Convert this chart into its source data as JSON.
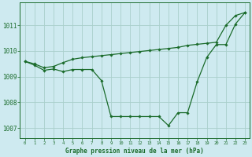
{
  "title": "Graphe pression niveau de la mer (hPa)",
  "background_color": "#ceeaf0",
  "grid_color": "#aacfcc",
  "line_color": "#1a6b2a",
  "x_labels": [
    "0",
    "1",
    "2",
    "3",
    "4",
    "5",
    "6",
    "7",
    "8",
    "9",
    "10",
    "11",
    "12",
    "13",
    "14",
    "15",
    "16",
    "17",
    "18",
    "19",
    "20",
    "21",
    "22",
    "23"
  ],
  "line1_x": [
    0,
    1,
    2,
    3,
    4,
    5,
    6,
    7,
    8,
    9,
    10,
    11,
    12,
    13,
    14,
    15,
    16,
    17,
    18,
    19,
    20,
    21,
    22,
    23
  ],
  "line1_y": [
    1009.6,
    1009.45,
    1009.25,
    1009.3,
    1009.2,
    1009.28,
    1009.28,
    1009.28,
    1008.85,
    1007.45,
    1007.45,
    1007.45,
    1007.45,
    1007.45,
    1007.45,
    1007.1,
    1007.6,
    1007.6,
    1008.8,
    1009.75,
    1010.25,
    1010.25,
    1011.05,
    1011.5
  ],
  "line2_x": [
    0,
    1,
    2,
    3,
    4,
    5,
    6,
    7,
    8,
    9,
    10,
    11,
    12,
    13,
    14,
    15,
    16,
    17,
    18,
    19,
    20,
    21,
    22,
    23
  ],
  "line2_y": [
    1009.6,
    1009.5,
    1009.35,
    1009.4,
    1009.55,
    1009.68,
    1009.74,
    1009.78,
    1009.82,
    1009.86,
    1009.9,
    1009.94,
    1009.98,
    1010.02,
    1010.06,
    1010.1,
    1010.14,
    1010.22,
    1010.26,
    1010.3,
    1010.34,
    1011.0,
    1011.38,
    1011.5
  ],
  "ylim": [
    1006.6,
    1011.9
  ],
  "yticks": [
    1007,
    1008,
    1009,
    1010,
    1011
  ],
  "marker": "D",
  "marker_size": 1.8,
  "line_width": 0.9,
  "figsize": [
    3.2,
    2.0
  ],
  "dpi": 100
}
